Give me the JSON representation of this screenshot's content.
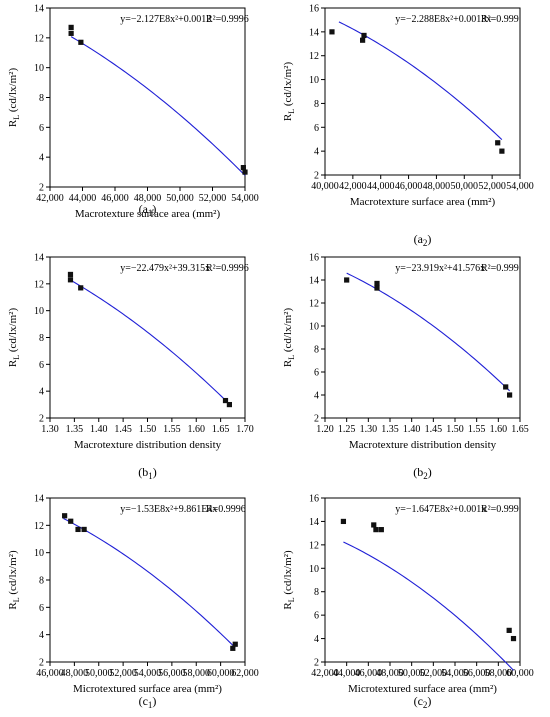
{
  "chart_data": [
    {
      "id": "a1",
      "type": "scatter",
      "caption_main": "(a",
      "caption_sub": "1",
      "caption_end": ")",
      "xlabel": "Macrotexture surface area (mm²)",
      "ylabel_main": "R",
      "ylabel_sub": "L",
      "ylabel_rest": " (cd/lx/m²)",
      "equation": "y=−2.127E8x²+0.0012",
      "r2": "R²=0.9996",
      "xlim": [
        42000,
        54000
      ],
      "ylim": [
        2,
        14
      ],
      "xticks": [
        42000,
        44000,
        46000,
        48000,
        50000,
        52000,
        54000
      ],
      "xtick_labels": [
        "42,000",
        "44,000",
        "46,000",
        "48,000",
        "50,000",
        "52,000",
        "54,000"
      ],
      "yticks": [
        2,
        4,
        6,
        8,
        10,
        12,
        14
      ],
      "ytick_labels": [
        "2",
        "4",
        "6",
        "8",
        "10",
        "12",
        "14"
      ],
      "points": [
        [
          43300,
          12.7
        ],
        [
          43300,
          12.3
        ],
        [
          43900,
          11.7
        ],
        [
          53900,
          3.3
        ],
        [
          54000,
          3.0
        ]
      ],
      "fit": {
        "a": -2.127e-08,
        "b": 0.0012,
        "c": 0,
        "x_from": 43300,
        "x_to": 54000
      },
      "color": "#1f1fd6"
    },
    {
      "id": "a2",
      "type": "scatter",
      "caption_main": "(a",
      "caption_sub": "2",
      "caption_end": ")",
      "xlabel": "Macrotexture surface area (mm²)",
      "ylabel_main": "R",
      "ylabel_sub": "L",
      "ylabel_rest": " (cd/lx/m²)",
      "equation": "y=−2.288E8x²+0.0013x",
      "r2": "R²=0.999",
      "xlim": [
        40000,
        54000
      ],
      "ylim": [
        2,
        16
      ],
      "xticks": [
        40000,
        42000,
        44000,
        46000,
        48000,
        50000,
        52000,
        54000
      ],
      "xtick_labels": [
        "40,000",
        "42,000",
        "44,000",
        "46,000",
        "48,000",
        "50,000",
        "52,000",
        "54,000"
      ],
      "yticks": [
        2,
        4,
        6,
        8,
        10,
        12,
        14,
        16
      ],
      "ytick_labels": [
        "2",
        "4",
        "6",
        "8",
        "10",
        "12",
        "14",
        "16"
      ],
      "points": [
        [
          40500,
          14.0
        ],
        [
          42800,
          13.7
        ],
        [
          42700,
          13.3
        ],
        [
          52400,
          4.7
        ],
        [
          52700,
          4.0
        ]
      ],
      "fit": {
        "a": -2.288e-08,
        "b": 0.0013,
        "c": 0,
        "x_from": 41000,
        "x_to": 52700
      },
      "color": "#1f1fd6"
    },
    {
      "id": "b1",
      "type": "scatter",
      "caption_main": "(b",
      "caption_sub": "1",
      "caption_end": ")",
      "xlabel": "Macrotexture distribution density",
      "ylabel_main": "R",
      "ylabel_sub": "L",
      "ylabel_rest": " (cd/lx/m²)",
      "equation": "y=−22.479x²+39.315x",
      "r2": "R²=0.9996",
      "xlim": [
        1.3,
        1.7
      ],
      "ylim": [
        2,
        14
      ],
      "xticks": [
        1.3,
        1.35,
        1.4,
        1.45,
        1.5,
        1.55,
        1.6,
        1.65,
        1.7
      ],
      "xtick_labels": [
        "1.30",
        "1.35",
        "1.40",
        "1.45",
        "1.50",
        "1.55",
        "1.60",
        "1.65",
        "1.70"
      ],
      "yticks": [
        2,
        4,
        6,
        8,
        10,
        12,
        14
      ],
      "ytick_labels": [
        "2",
        "4",
        "6",
        "8",
        "10",
        "12",
        "14"
      ],
      "points": [
        [
          1.342,
          12.7
        ],
        [
          1.342,
          12.3
        ],
        [
          1.363,
          11.7
        ],
        [
          1.66,
          3.3
        ],
        [
          1.668,
          3.0
        ]
      ],
      "fit": {
        "a": -22.479,
        "b": 39.315,
        "c": 0,
        "x_from": 1.34,
        "x_to": 1.668
      },
      "color": "#1f1fd6"
    },
    {
      "id": "b2",
      "type": "scatter",
      "caption_main": "(b",
      "caption_sub": "2",
      "caption_end": ")",
      "xlabel": "Macrotexture distribution density",
      "ylabel_main": "R",
      "ylabel_sub": "L",
      "ylabel_rest": " (cd/lx/m²)",
      "equation": "y=−23.919x²+41.576x",
      "r2": "R²=0.999",
      "xlim": [
        1.2,
        1.65
      ],
      "ylim": [
        2,
        16
      ],
      "xticks": [
        1.2,
        1.25,
        1.3,
        1.35,
        1.4,
        1.45,
        1.5,
        1.55,
        1.6,
        1.65
      ],
      "xtick_labels": [
        "1.20",
        "1.25",
        "1.30",
        "1.35",
        "1.40",
        "1.45",
        "1.50",
        "1.55",
        "1.60",
        "1.65"
      ],
      "yticks": [
        2,
        4,
        6,
        8,
        10,
        12,
        14,
        16
      ],
      "ytick_labels": [
        "2",
        "4",
        "6",
        "8",
        "10",
        "12",
        "14",
        "16"
      ],
      "points": [
        [
          1.25,
          14.0
        ],
        [
          1.32,
          13.7
        ],
        [
          1.32,
          13.3
        ],
        [
          1.617,
          4.7
        ],
        [
          1.626,
          4.0
        ]
      ],
      "fit": {
        "a": -23.919,
        "b": 41.576,
        "c": 0,
        "x_from": 1.25,
        "x_to": 1.626
      },
      "color": "#1f1fd6"
    },
    {
      "id": "c1",
      "type": "scatter",
      "caption_main": "(c",
      "caption_sub": "1",
      "caption_end": ")",
      "xlabel": "Microtextured surface area (mm²)",
      "ylabel_main": "R",
      "ylabel_sub": "L",
      "ylabel_rest": " (cd/lx/m²)",
      "equation": "y=−1.53E8x²+9.861E4x",
      "r2": "R=0.9996",
      "xlim": [
        46000,
        62000
      ],
      "ylim": [
        2,
        14
      ],
      "xticks": [
        46000,
        48000,
        50000,
        52000,
        54000,
        56000,
        58000,
        60000,
        62000
      ],
      "xtick_labels": [
        "46,000",
        "48,000",
        "50,000",
        "52,000",
        "54,000",
        "56,000",
        "58,000",
        "60,000",
        "62,000"
      ],
      "yticks": [
        2,
        4,
        6,
        8,
        10,
        12,
        14
      ],
      "ytick_labels": [
        "2",
        "4",
        "6",
        "8",
        "10",
        "12",
        "14"
      ],
      "points": [
        [
          47200,
          12.7
        ],
        [
          47700,
          12.3
        ],
        [
          48300,
          11.7
        ],
        [
          48800,
          11.7
        ],
        [
          61000,
          3.0
        ],
        [
          61200,
          3.3
        ]
      ],
      "fit": {
        "a": -1.53e-08,
        "b": 0.0009861,
        "c": 0,
        "x_from": 47100,
        "x_to": 61200
      },
      "color": "#1f1fd6"
    },
    {
      "id": "c2",
      "type": "scatter",
      "caption_main": "(c",
      "caption_sub": "2",
      "caption_end": ")",
      "xlabel": "Microtextured surface area (mm²)",
      "ylabel_main": "R",
      "ylabel_sub": "L",
      "ylabel_rest": " (cd/lx/m²)",
      "equation": "y=−1.647E8x²+0.001x",
      "r2": "R²=0.999",
      "xlim": [
        42000,
        60000
      ],
      "ylim": [
        2,
        16
      ],
      "xticks": [
        42000,
        44000,
        46000,
        48000,
        50000,
        52000,
        54000,
        56000,
        58000,
        60000
      ],
      "xtick_labels": [
        "42,000",
        "44,000",
        "46,000",
        "48,000",
        "50,000",
        "52,000",
        "54,000",
        "56,000",
        "58,000",
        "60,000"
      ],
      "yticks": [
        2,
        4,
        6,
        8,
        10,
        12,
        14,
        16
      ],
      "ytick_labels": [
        "2",
        "4",
        "6",
        "8",
        "10",
        "12",
        "14",
        "16"
      ],
      "points": [
        [
          43700,
          14.0
        ],
        [
          46500,
          13.7
        ],
        [
          46700,
          13.3
        ],
        [
          47200,
          13.3
        ],
        [
          59000,
          4.7
        ],
        [
          59400,
          4.0
        ]
      ],
      "fit": {
        "a": -1.647e-08,
        "b": 0.001,
        "c": 0,
        "x_from": 43700,
        "x_to": 59400
      },
      "color": "#1f1fd6"
    }
  ]
}
